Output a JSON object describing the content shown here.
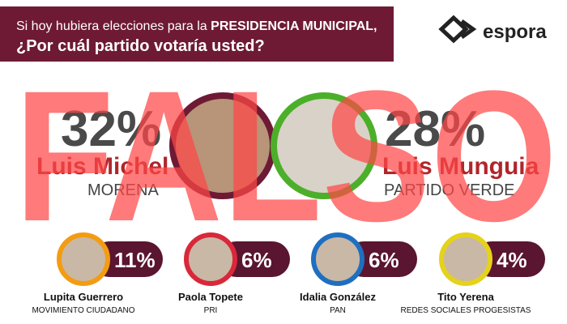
{
  "header": {
    "question_line1_start": "Si hoy hubiera elecciones para la ",
    "question_line1_bold": "PRESIDENCIA MUNICIPAL,",
    "question_line2": "¿Por cuál partido votaría usted?"
  },
  "logo": "espora",
  "leaders": [
    {
      "percent": "32%",
      "name": "Luis Michel",
      "party": "MORENA"
    },
    {
      "percent": "28%",
      "name": "Luis Munguia",
      "party": "PARTIDO VERDE"
    }
  ],
  "others": [
    {
      "percent": "11%",
      "name": "Lupita Guerrero",
      "party": "MOVIMIENTO CIUDADANO"
    },
    {
      "percent": "6%",
      "name": "Paola Topete",
      "party": "PRI"
    },
    {
      "percent": "6%",
      "name": "Idalia González",
      "party": "PAN"
    },
    {
      "percent": "4%",
      "name": "Tito Yerena",
      "party": "REDES SOCIALES PROGESISTAS"
    }
  ],
  "overlay": "FALSO"
}
